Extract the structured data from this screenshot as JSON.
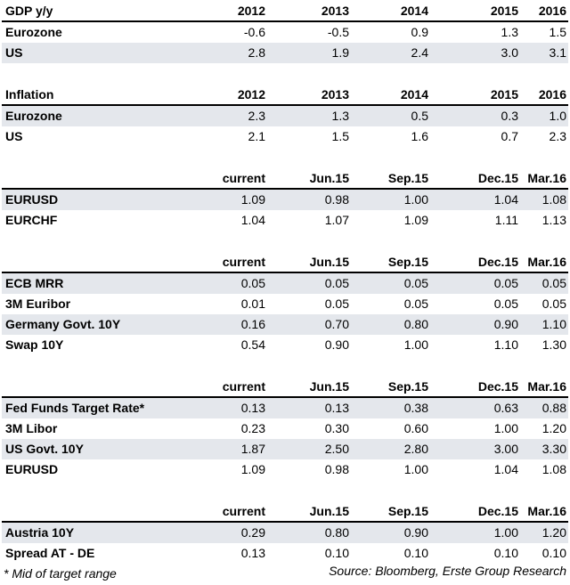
{
  "gdp": {
    "title": "GDP y/y",
    "years": [
      "2012",
      "2013",
      "2014",
      "2015",
      "2016"
    ],
    "rows": [
      {
        "label": "Eurozone",
        "values": [
          "-0.6",
          "-0.5",
          "0.9",
          "1.3",
          "1.5"
        ]
      },
      {
        "label": "US",
        "values": [
          "2.8",
          "1.9",
          "2.4",
          "3.0",
          "3.1"
        ]
      }
    ]
  },
  "inflation": {
    "title": "Inflation",
    "years": [
      "2012",
      "2013",
      "2014",
      "2015",
      "2016"
    ],
    "rows": [
      {
        "label": "Eurozone",
        "values": [
          "2.3",
          "1.3",
          "0.5",
          "0.3",
          "1.0"
        ]
      },
      {
        "label": "US",
        "values": [
          "2.1",
          "1.5",
          "1.6",
          "0.7",
          "2.3"
        ]
      }
    ]
  },
  "fx": {
    "columns": [
      "current",
      "Jun.15",
      "Sep.15",
      "Dec.15",
      "Mar.16"
    ],
    "rows": [
      {
        "label": "EURUSD",
        "values": [
          "1.09",
          "0.98",
          "1.00",
          "1.04",
          "1.08"
        ]
      },
      {
        "label": "EURCHF",
        "values": [
          "1.04",
          "1.07",
          "1.09",
          "1.11",
          "1.13"
        ]
      }
    ]
  },
  "eurates": {
    "columns": [
      "current",
      "Jun.15",
      "Sep.15",
      "Dec.15",
      "Mar.16"
    ],
    "rows": [
      {
        "label": "ECB MRR",
        "values": [
          "0.05",
          "0.05",
          "0.05",
          "0.05",
          "0.05"
        ]
      },
      {
        "label": "3M Euribor",
        "values": [
          "0.01",
          "0.05",
          "0.05",
          "0.05",
          "0.05"
        ]
      },
      {
        "label": "Germany Govt. 10Y",
        "values": [
          "0.16",
          "0.70",
          "0.80",
          "0.90",
          "1.10"
        ]
      },
      {
        "label": "Swap 10Y",
        "values": [
          "0.54",
          "0.90",
          "1.00",
          "1.10",
          "1.30"
        ]
      }
    ]
  },
  "usrates": {
    "columns": [
      "current",
      "Jun.15",
      "Sep.15",
      "Dec.15",
      "Mar.16"
    ],
    "rows": [
      {
        "label": "Fed Funds Target Rate*",
        "values": [
          "0.13",
          "0.13",
          "0.38",
          "0.63",
          "0.88"
        ]
      },
      {
        "label": "3M Libor",
        "values": [
          "0.23",
          "0.30",
          "0.60",
          "1.00",
          "1.20"
        ]
      },
      {
        "label": "US Govt. 10Y",
        "values": [
          "1.87",
          "2.50",
          "2.80",
          "3.00",
          "3.30"
        ]
      },
      {
        "label": "EURUSD",
        "values": [
          "1.09",
          "0.98",
          "1.00",
          "1.04",
          "1.08"
        ]
      }
    ]
  },
  "austria": {
    "columns": [
      "current",
      "Jun.15",
      "Sep.15",
      "Dec.15",
      "Mar.16"
    ],
    "rows": [
      {
        "label": "Austria 10Y",
        "values": [
          "0.29",
          "0.80",
          "0.90",
          "1.00",
          "1.20"
        ]
      },
      {
        "label": "Spread AT - DE",
        "values": [
          "0.13",
          "0.10",
          "0.10",
          "0.10",
          "0.10"
        ]
      }
    ]
  },
  "footnote": "* Mid of target range",
  "source": "Source: Bloomberg, Erste Group Research"
}
